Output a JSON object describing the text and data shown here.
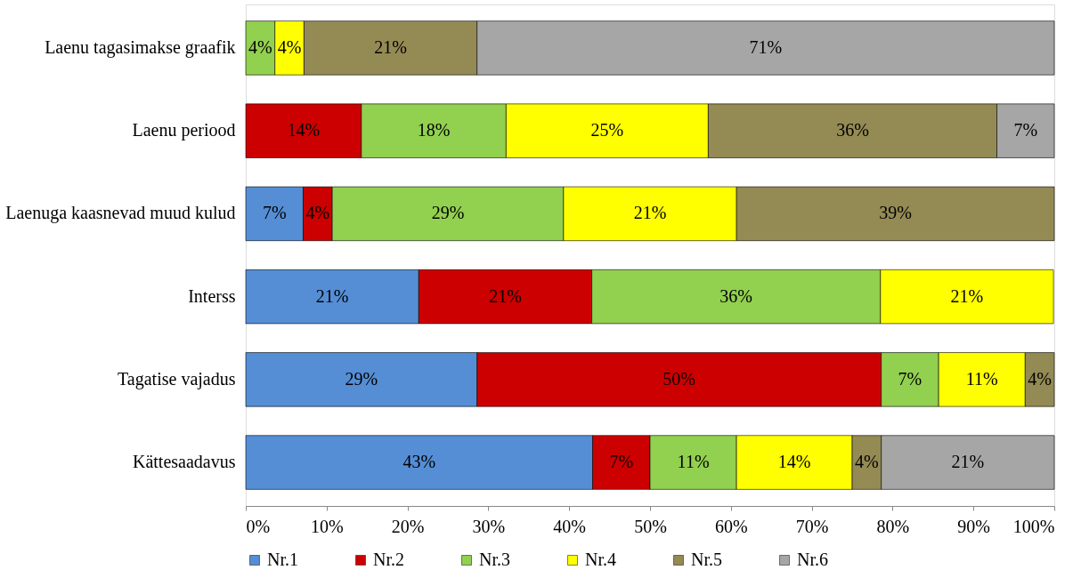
{
  "chart_data": {
    "type": "bar",
    "orientation": "horizontal",
    "stacked": true,
    "categories": [
      "Laenu tagasimakse graafik",
      "Laenu periood",
      "Laenuga kaasnevad muud kulud",
      "Interss",
      "Tagatise vajadus",
      "Kättesaadavus"
    ],
    "series": [
      {
        "name": "Nr.1",
        "color": "#558ed5",
        "values": [
          null,
          null,
          7.1,
          21.4,
          28.6,
          42.9
        ],
        "value_labels": [
          null,
          null,
          "7%",
          "21%",
          "29%",
          "43%"
        ]
      },
      {
        "name": "Nr.2",
        "color": "#cc0000",
        "values": [
          null,
          14.3,
          3.6,
          21.4,
          50,
          7.1
        ],
        "value_labels": [
          null,
          "14%",
          "4%",
          "21%",
          "50%",
          "7%"
        ]
      },
      {
        "name": "Nr.3",
        "color": "#92d050",
        "values": [
          3.6,
          17.9,
          28.6,
          35.7,
          7.1,
          10.7
        ],
        "value_labels": [
          "4%",
          "18%",
          "29%",
          "36%",
          "7%",
          "11%"
        ]
      },
      {
        "name": "Nr.4",
        "color": "#ffff00",
        "values": [
          3.6,
          25,
          21.4,
          21.4,
          10.7,
          14.3
        ],
        "value_labels": [
          "4%",
          "25%",
          "21%",
          "21%",
          "11%",
          "14%"
        ]
      },
      {
        "name": "Nr.5",
        "color": "#948a54",
        "values": [
          21.4,
          35.7,
          39.3,
          null,
          3.6,
          3.6
        ],
        "value_labels": [
          "21%",
          "36%",
          "39%",
          null,
          "4%",
          "4%"
        ]
      },
      {
        "name": "Nr.6",
        "color": "#a6a6a6",
        "values": [
          71.4,
          7.1,
          null,
          null,
          null,
          21.4
        ],
        "value_labels": [
          "71%",
          "7%",
          null,
          null,
          null,
          "21%"
        ]
      }
    ],
    "xlim": [
      0,
      100
    ],
    "xticks": [
      {
        "value": 0,
        "label": "0%"
      },
      {
        "value": 10,
        "label": "10%"
      },
      {
        "value": 20,
        "label": "20%"
      },
      {
        "value": 30,
        "label": "30%"
      },
      {
        "value": 40,
        "label": "40%"
      },
      {
        "value": 50,
        "label": "50%"
      },
      {
        "value": 60,
        "label": "60%"
      },
      {
        "value": 70,
        "label": "70%"
      },
      {
        "value": 80,
        "label": "80%"
      },
      {
        "value": 90,
        "label": "90%"
      },
      {
        "value": 100,
        "label": "100%"
      }
    ],
    "legend": "bottom",
    "grid": false
  }
}
